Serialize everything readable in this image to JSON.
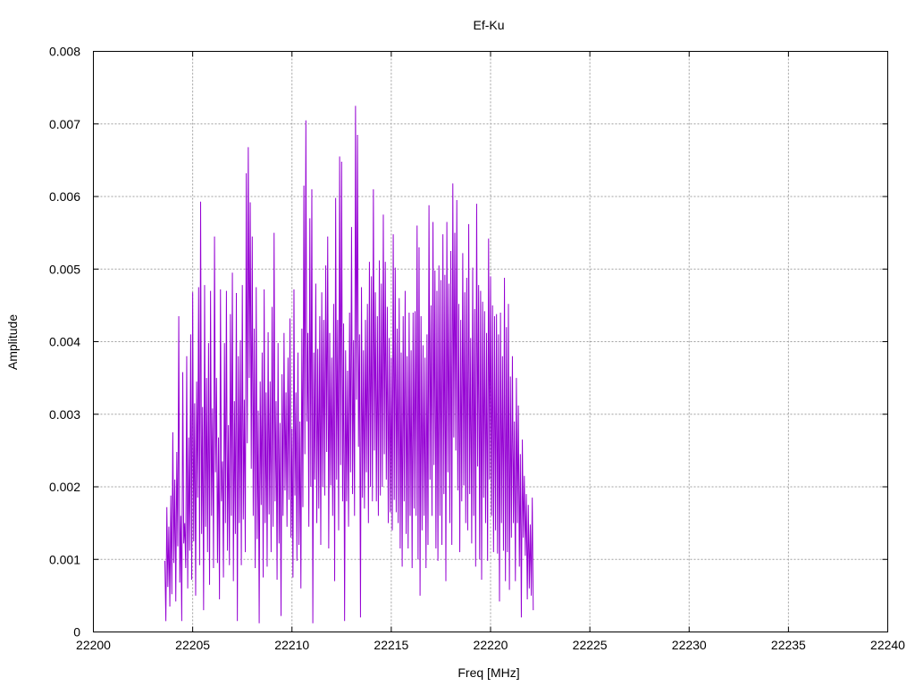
{
  "chart_data": {
    "type": "line",
    "title": "Ef-Ku",
    "xlabel": "Freq [MHz]",
    "ylabel": "Amplitude",
    "xlim": [
      22200,
      22240
    ],
    "ylim": [
      0,
      0.008
    ],
    "x_ticks": [
      "22200",
      "22205",
      "22210",
      "22215",
      "22220",
      "22225",
      "22230",
      "22235",
      "22240"
    ],
    "y_ticks": [
      "0",
      "0.001",
      "0.002",
      "0.003",
      "0.004",
      "0.005",
      "0.006",
      "0.007",
      "0.008"
    ],
    "grid": true,
    "series_color": "#9400d3",
    "series": [
      {
        "x_start": 22203.6,
        "x_step": 0.05,
        "values": [
          0.00098,
          0.00015,
          0.00172,
          0.00062,
          0.00145,
          0.00035,
          0.00188,
          0.00052,
          0.00275,
          0.00095,
          0.0021,
          0.00042,
          0.00248,
          0.00118,
          0.00435,
          0.00068,
          0.0016,
          0.00015,
          0.00358,
          0.00122,
          0.0015,
          0.00088,
          0.0038,
          0.0006,
          0.00268,
          0.00112,
          0.0041,
          0.00072,
          0.00468,
          0.00125,
          0.00315,
          0.0005,
          0.00345,
          0.00185,
          0.00475,
          0.00092,
          0.00593,
          0.00135,
          0.0031,
          0.0003,
          0.00478,
          0.00145,
          0.0035,
          0.0011,
          0.00398,
          0.00065,
          0.0047,
          0.0016,
          0.00308,
          0.00088,
          0.00545,
          0.0022,
          0.0035,
          0.00095,
          0.00268,
          0.00045,
          0.00472,
          0.0018,
          0.00235,
          0.00075,
          0.00398,
          0.0015,
          0.0047,
          0.00112,
          0.00285,
          0.00092,
          0.00438,
          0.0016,
          0.00495,
          0.0007,
          0.00318,
          0.00135,
          0.00467,
          0.00015,
          0.0038,
          0.0015,
          0.00402,
          0.00092,
          0.00478,
          0.00155,
          0.0032,
          0.0011,
          0.00632,
          0.0026,
          0.00668,
          0.0035,
          0.00592,
          0.00225,
          0.00545,
          0.0016,
          0.00418,
          0.00088,
          0.00475,
          0.00128,
          0.00305,
          0.00012,
          0.00345,
          0.00175,
          0.00385,
          0.00075,
          0.00472,
          0.0015,
          0.0033,
          0.0009,
          0.00413,
          0.00162,
          0.00345,
          0.0011,
          0.00448,
          0.00145,
          0.0055,
          0.0018,
          0.00318,
          0.00072,
          0.00398,
          0.00122,
          0.00288,
          0.00022,
          0.00355,
          0.0016,
          0.00412,
          0.00195,
          0.0033,
          0.00145,
          0.00378,
          0.00182,
          0.00432,
          0.0013,
          0.0028,
          0.00075,
          0.00472,
          0.00188,
          0.0033,
          0.00098,
          0.00385,
          0.0012,
          0.0029,
          0.0006,
          0.00418,
          0.00172,
          0.00615,
          0.00245,
          0.00705,
          0.0029,
          0.00412,
          0.00145,
          0.0057,
          0.002,
          0.0061,
          0.00012,
          0.00385,
          0.0021,
          0.0048,
          0.0015,
          0.0039,
          0.0017,
          0.00435,
          0.0012,
          0.00468,
          0.002,
          0.0043,
          0.00188,
          0.00505,
          0.00248,
          0.00545,
          0.00115,
          0.00412,
          0.00202,
          0.00378,
          0.0016,
          0.00452,
          0.0007,
          0.00598,
          0.0021,
          0.0043,
          0.0014,
          0.00655,
          0.0023,
          0.00648,
          0.0018,
          0.00425,
          0.00015,
          0.00388,
          0.0018,
          0.0036,
          0.00145,
          0.0044,
          0.0022,
          0.00558,
          0.0019,
          0.00402,
          0.0016,
          0.00725,
          0.0032,
          0.00685,
          0.00255,
          0.0041,
          0.0002,
          0.00475,
          0.00185,
          0.00388,
          0.0017,
          0.0043,
          0.0022,
          0.00452,
          0.0015,
          0.0051,
          0.002,
          0.0049,
          0.0018,
          0.0061,
          0.0025,
          0.00468,
          0.0018,
          0.00435,
          0.0016,
          0.00512,
          0.00188,
          0.0048,
          0.002,
          0.00575,
          0.00245,
          0.0051,
          0.0021,
          0.00448,
          0.0015,
          0.00405,
          0.00165,
          0.00378,
          0.0014,
          0.00548,
          0.00182,
          0.00502,
          0.00165,
          0.00418,
          0.0015,
          0.0046,
          0.00115,
          0.00385,
          0.0009,
          0.00435,
          0.0018,
          0.0047,
          0.00135,
          0.0038,
          0.00115,
          0.0044,
          0.0016,
          0.00388,
          0.00088,
          0.0044,
          0.0017,
          0.00442,
          0.0016,
          0.0056,
          0.001,
          0.0053,
          0.0005,
          0.00435,
          0.0014,
          0.00395,
          0.0016,
          0.00378,
          0.00088,
          0.0041,
          0.0012,
          0.00588,
          0.0021,
          0.0045,
          0.0016,
          0.00565,
          0.0023,
          0.00498,
          0.00115,
          0.0047,
          0.00098,
          0.00505,
          0.0016,
          0.00485,
          0.0012,
          0.00548,
          0.0019,
          0.00492,
          0.0007,
          0.00565,
          0.0022,
          0.0048,
          0.0015,
          0.00525,
          0.0012,
          0.00618,
          0.00268,
          0.0055,
          0.0025,
          0.00595,
          0.00195,
          0.00452,
          0.0011,
          0.0043,
          0.0018,
          0.00522,
          0.00202,
          0.00468,
          0.0015,
          0.00488,
          0.0014,
          0.00562,
          0.0019,
          0.00405,
          0.00122,
          0.00502,
          0.0016,
          0.00445,
          0.0009,
          0.0059,
          0.00228,
          0.00478,
          0.001,
          0.0047,
          0.00072,
          0.00455,
          0.00185,
          0.00442,
          0.0015,
          0.00412,
          0.00098,
          0.00542,
          0.0021,
          0.0049,
          0.0016,
          0.0045,
          0.0011,
          0.00435,
          0.0014,
          0.00438,
          0.00108,
          0.0041,
          0.00042,
          0.0044,
          0.0015,
          0.0038,
          0.00112,
          0.00488,
          0.0007,
          0.0042,
          0.0011,
          0.00452,
          0.00058,
          0.00352,
          0.0013,
          0.0038,
          0.0015,
          0.0029,
          0.0007,
          0.0035,
          0.0015,
          0.00312,
          0.0009,
          0.00245,
          0.0002,
          0.00265,
          0.0013,
          0.00215,
          0.00105,
          0.0019,
          0.00045,
          0.00175,
          0.0006,
          0.00148,
          0.0005,
          0.00185,
          0.0003
        ]
      }
    ]
  }
}
